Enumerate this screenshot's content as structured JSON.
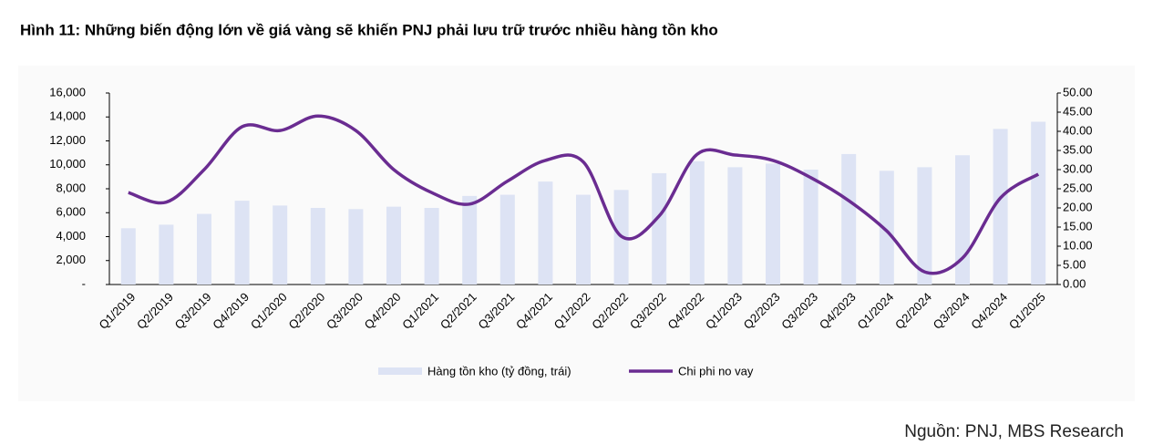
{
  "chart_data": {
    "type": "bar-line",
    "title": "Hình 11: Những biến động lớn về giá vàng sẽ khiến PNJ phải lưu trữ trước nhiều hàng tồn kho",
    "source": "Nguồn: PNJ, MBS Research",
    "categories": [
      "Q1/2019",
      "Q2/2019",
      "Q3/2019",
      "Q4/2019",
      "Q1/2020",
      "Q2/2020",
      "Q3/2020",
      "Q4/2020",
      "Q1/2021",
      "Q2/2021",
      "Q3/2021",
      "Q4/2021",
      "Q1/2022",
      "Q2/2022",
      "Q3/2022",
      "Q4/2022",
      "Q1/2023",
      "Q2/2023",
      "Q3/2023",
      "Q4/2023",
      "Q1/2024",
      "Q2/2024",
      "Q3/2024",
      "Q4/2024",
      "Q1/2025"
    ],
    "series": [
      {
        "name": "Hàng tồn kho (tỷ đồng, trái)",
        "type": "bar",
        "color": "#dde3f4",
        "values": [
          4700,
          5000,
          5900,
          7000,
          6600,
          6400,
          6300,
          6500,
          6400,
          7400,
          7500,
          8600,
          7500,
          7900,
          9300,
          10300,
          9800,
          10100,
          9600,
          10900,
          9500,
          9800,
          10800,
          13000,
          13600
        ]
      },
      {
        "name": "Chi phi no vay",
        "type": "line",
        "axis": "y2",
        "color": "#6a2c91",
        "values": [
          24,
          21.5,
          30,
          41.2,
          40.2,
          44,
          40.2,
          30,
          24,
          21,
          27,
          32.4,
          32,
          12.6,
          17.9,
          34,
          33.8,
          32.4,
          27.9,
          21.9,
          14,
          3.3,
          6.9,
          22.6,
          28.8
        ]
      }
    ],
    "ylim": [
      0,
      16000
    ],
    "yticks": [
      {
        "value": 0,
        "label": "-"
      },
      {
        "value": 2000,
        "label": "2,000"
      },
      {
        "value": 4000,
        "label": "4,000"
      },
      {
        "value": 6000,
        "label": "6,000"
      },
      {
        "value": 8000,
        "label": "8,000"
      },
      {
        "value": 10000,
        "label": "10,000"
      },
      {
        "value": 12000,
        "label": "12,000"
      },
      {
        "value": 14000,
        "label": "14,000"
      },
      {
        "value": 16000,
        "label": "16,000"
      }
    ],
    "y2lim": [
      0,
      50
    ],
    "y2ticks": [
      {
        "value": 0,
        "label": "0.00"
      },
      {
        "value": 5,
        "label": "5.00"
      },
      {
        "value": 10,
        "label": "10.00"
      },
      {
        "value": 15,
        "label": "15.00"
      },
      {
        "value": 20,
        "label": "20.00"
      },
      {
        "value": 25,
        "label": "25.00"
      },
      {
        "value": 30,
        "label": "30.00"
      },
      {
        "value": 35,
        "label": "35.00"
      },
      {
        "value": 40,
        "label": "40.00"
      },
      {
        "value": 45,
        "label": "45.00"
      },
      {
        "value": 50,
        "label": "50.00"
      }
    ]
  }
}
